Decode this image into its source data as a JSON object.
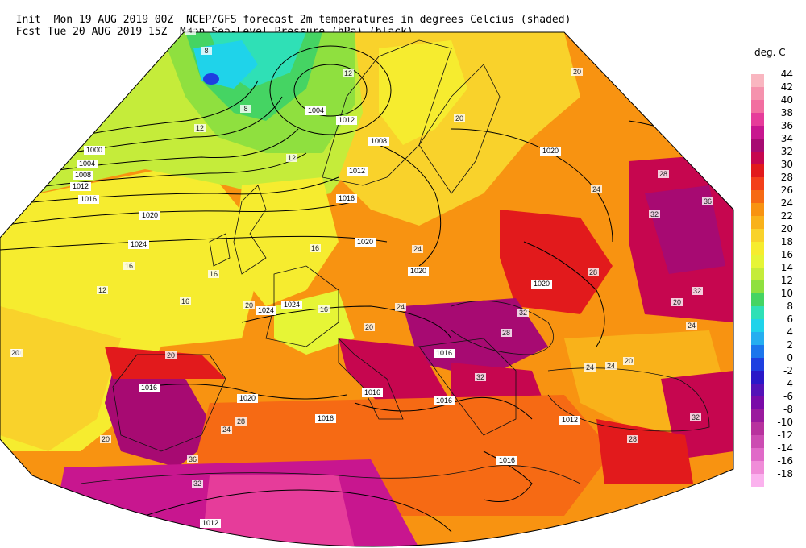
{
  "header": {
    "line1_left": "Init  Mon 19 AUG 2019 00Z",
    "line1_right": "NCEP/GFS forecast 2m temperatures in degrees Celcius (shaded)",
    "line2_left": "Fcst Tue 20 AUG 2019 15Z",
    "line2_right": "Mean Sea-Level Pressure (hPa) (black)."
  },
  "colorbar": {
    "unit": "deg. C",
    "levels": [
      {
        "label": "44",
        "color": "#f9b6c0"
      },
      {
        "label": "42",
        "color": "#f592ad"
      },
      {
        "label": "40",
        "color": "#f26ea0"
      },
      {
        "label": "38",
        "color": "#e63c9a"
      },
      {
        "label": "36",
        "color": "#c8168f"
      },
      {
        "label": "34",
        "color": "#a70a72"
      },
      {
        "label": "32",
        "color": "#c6064f"
      },
      {
        "label": "30",
        "color": "#e21a1c"
      },
      {
        "label": "28",
        "color": "#f3401a"
      },
      {
        "label": "26",
        "color": "#f66a14"
      },
      {
        "label": "24",
        "color": "#f89311"
      },
      {
        "label": "22",
        "color": "#f9b21a"
      },
      {
        "label": "20",
        "color": "#f9d22b"
      },
      {
        "label": "18",
        "color": "#f6ec2f"
      },
      {
        "label": "16",
        "color": "#e6f536"
      },
      {
        "label": "14",
        "color": "#c5ec3a"
      },
      {
        "label": "12",
        "color": "#8fe03f"
      },
      {
        "label": "10",
        "color": "#45d463"
      },
      {
        "label": "8",
        "color": "#2fe0b6"
      },
      {
        "label": "6",
        "color": "#1fd3ea"
      },
      {
        "label": "4",
        "color": "#26aef0"
      },
      {
        "label": "2",
        "color": "#1c76ec"
      },
      {
        "label": "0",
        "color": "#1e3fe0"
      },
      {
        "label": "-2",
        "color": "#2a18c8"
      },
      {
        "label": "-4",
        "color": "#5412b8"
      },
      {
        "label": "-6",
        "color": "#7a0aa8"
      },
      {
        "label": "-8",
        "color": "#9a1a9e"
      },
      {
        "label": "-10",
        "color": "#b8329e"
      },
      {
        "label": "-12",
        "color": "#cc4cb2"
      },
      {
        "label": "-14",
        "color": "#e06ac8"
      },
      {
        "label": "-16",
        "color": "#f08cd8"
      },
      {
        "label": "-18",
        "color": "#fbb2ee"
      }
    ]
  },
  "isobar_labels": [
    {
      "text": "1000"
    },
    {
      "text": "1004"
    },
    {
      "text": "1008"
    },
    {
      "text": "1012"
    },
    {
      "text": "1016"
    },
    {
      "text": "1020"
    },
    {
      "text": "1024"
    },
    {
      "text": "1004"
    },
    {
      "text": "1008"
    },
    {
      "text": "1012"
    },
    {
      "text": "1016"
    },
    {
      "text": "1020"
    },
    {
      "text": "1020"
    },
    {
      "text": "1024"
    },
    {
      "text": "1020"
    },
    {
      "text": "1024"
    },
    {
      "text": "1016"
    },
    {
      "text": "1020"
    },
    {
      "text": "1016"
    },
    {
      "text": "1016"
    },
    {
      "text": "1016"
    },
    {
      "text": "1016"
    },
    {
      "text": "1012"
    },
    {
      "text": "1012"
    },
    {
      "text": "1016"
    },
    {
      "text": "1012"
    },
    {
      "text": "1020"
    },
    {
      "text": "1012"
    }
  ],
  "temperature_labels": [
    {
      "text": "4"
    },
    {
      "text": "8"
    },
    {
      "text": "8"
    },
    {
      "text": "12"
    },
    {
      "text": "12"
    },
    {
      "text": "12"
    },
    {
      "text": "16"
    },
    {
      "text": "16"
    },
    {
      "text": "16"
    },
    {
      "text": "20"
    },
    {
      "text": "20"
    },
    {
      "text": "24"
    },
    {
      "text": "24"
    },
    {
      "text": "28"
    },
    {
      "text": "32"
    },
    {
      "text": "36"
    },
    {
      "text": "32"
    },
    {
      "text": "20"
    },
    {
      "text": "24"
    },
    {
      "text": "28"
    },
    {
      "text": "32"
    },
    {
      "text": "24"
    },
    {
      "text": "20"
    },
    {
      "text": "16"
    },
    {
      "text": "20"
    },
    {
      "text": "24"
    },
    {
      "text": "32"
    },
    {
      "text": "28"
    },
    {
      "text": "24"
    },
    {
      "text": "20"
    },
    {
      "text": "36"
    },
    {
      "text": "32"
    },
    {
      "text": "28"
    },
    {
      "text": "20"
    },
    {
      "text": "24"
    },
    {
      "text": "32"
    },
    {
      "text": "28"
    },
    {
      "text": "16"
    },
    {
      "text": "20"
    },
    {
      "text": "12"
    },
    {
      "text": "20"
    },
    {
      "text": "20"
    }
  ]
}
